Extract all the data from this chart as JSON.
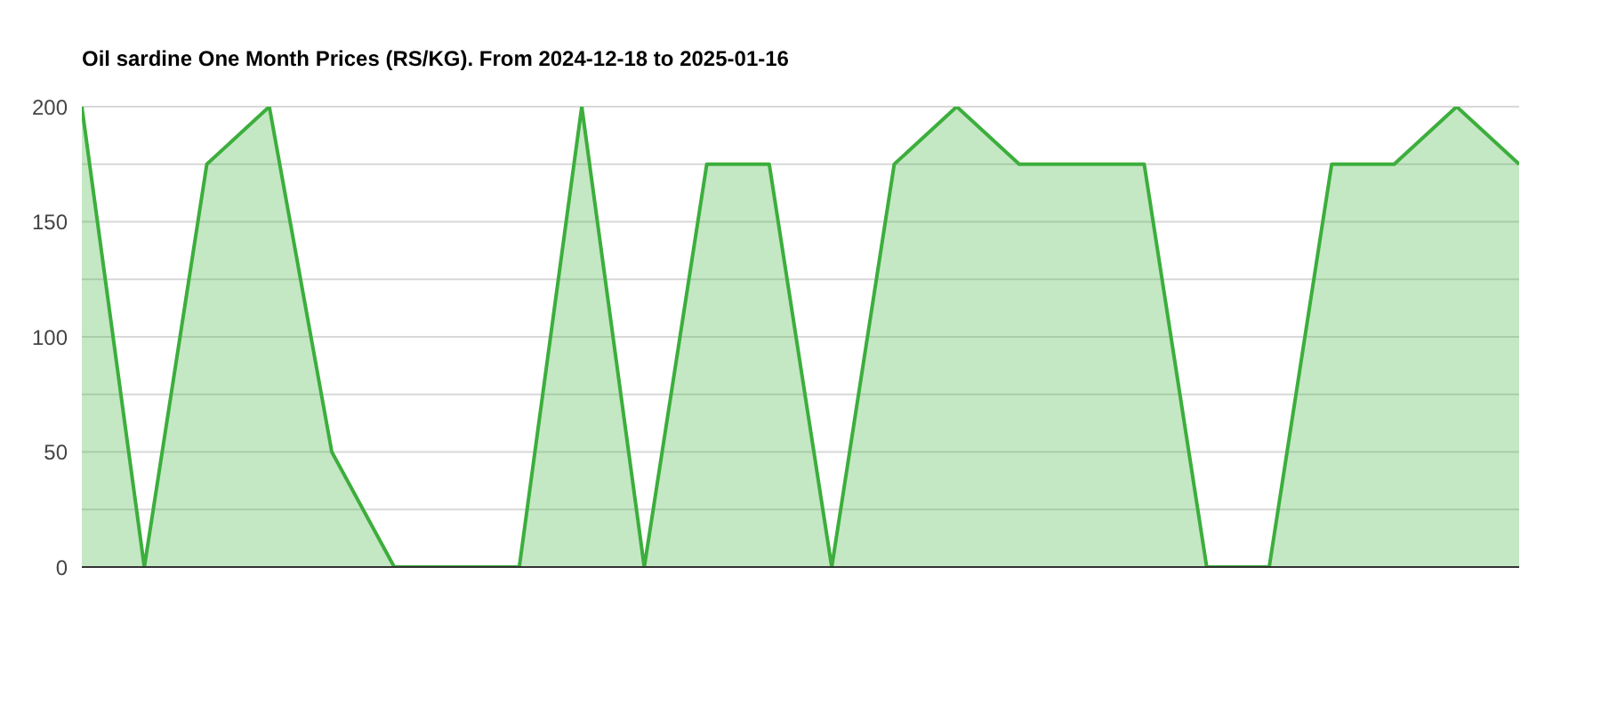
{
  "chart_data": {
    "type": "area",
    "title": "Oil sardine One Month Prices (RS/KG). From 2024-12-18 to 2025-01-16",
    "categories": [
      null,
      null,
      null,
      null,
      null,
      null,
      null,
      null,
      null,
      null,
      null,
      null,
      null,
      null,
      null,
      null,
      null,
      null,
      null,
      null,
      null,
      null,
      null,
      null
    ],
    "series": [
      {
        "color": "#3cae3c",
        "values": [
          200,
          0,
          175,
          200,
          50,
          0,
          0,
          0,
          200,
          0,
          175,
          175,
          0,
          175,
          200,
          175,
          175,
          175,
          0,
          0,
          175,
          175,
          200,
          175
        ]
      }
    ],
    "ylim": [
      0,
      200
    ],
    "yticks": [
      0,
      {
        "value": 25,
        "label": null
      },
      50,
      {
        "value": 75,
        "label": null
      },
      100,
      {
        "value": 125,
        "label": null
      },
      150,
      {
        "value": 175,
        "label": null
      },
      200
    ],
    "grid": "y",
    "tick_labels": "y"
  }
}
